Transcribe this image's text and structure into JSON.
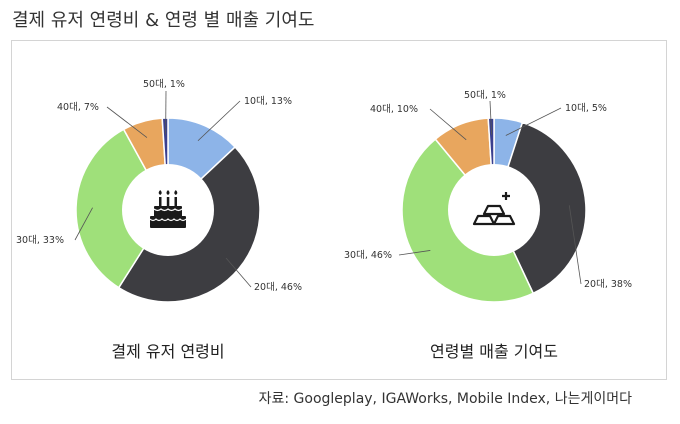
{
  "title": "결제 유저 연령비 & 연령 별 매출 기여도",
  "source": "자료: Googleplay, IGAWorks, Mobile Index, 나는게이머다",
  "colors": {
    "10대": "#8db4e8",
    "20대": "#3d3d41",
    "30대": "#9fe07a",
    "40대": "#e8a65e",
    "50대": "#3a3f8e"
  },
  "chart_data": [
    {
      "type": "pie",
      "caption": "결제 유저 연령비",
      "icon": "birthday-cake-icon",
      "slices": [
        {
          "label": "10대",
          "value": 13,
          "text": "10대, 13%"
        },
        {
          "label": "20대",
          "value": 46,
          "text": "20대, 46%"
        },
        {
          "label": "30대",
          "value": 33,
          "text": "30대, 33%"
        },
        {
          "label": "40대",
          "value": 7,
          "text": "40대, 7%"
        },
        {
          "label": "50대",
          "value": 1,
          "text": "50대, 1%"
        }
      ]
    },
    {
      "type": "pie",
      "caption": "연령별 매출 기여도",
      "icon": "gold-bars-icon",
      "slices": [
        {
          "label": "10대",
          "value": 5,
          "text": "10대, 5%"
        },
        {
          "label": "20대",
          "value": 38,
          "text": "20대, 38%"
        },
        {
          "label": "30대",
          "value": 46,
          "text": "30대, 46%"
        },
        {
          "label": "40대",
          "value": 10,
          "text": "40대, 10%"
        },
        {
          "label": "50대",
          "value": 1,
          "text": "50대, 1%"
        }
      ]
    }
  ]
}
